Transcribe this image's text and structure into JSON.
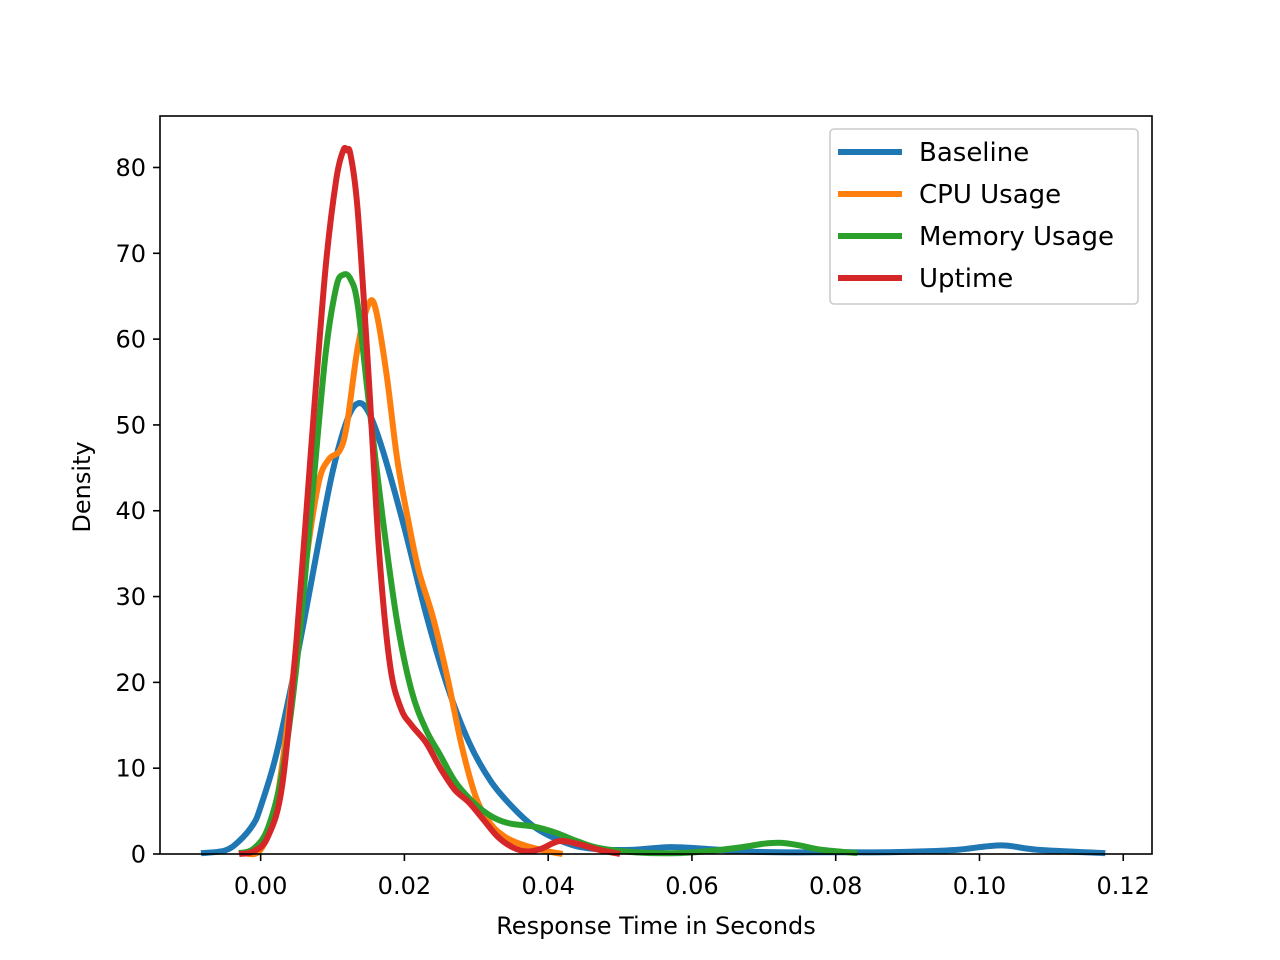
{
  "chart_data": {
    "type": "line",
    "title": "",
    "xlabel": "Response Time in Seconds",
    "ylabel": "Density",
    "xlim": [
      -0.014,
      0.124
    ],
    "ylim": [
      0,
      86
    ],
    "xticks": [
      0.0,
      0.02,
      0.04,
      0.06,
      0.08,
      0.1,
      0.12
    ],
    "xtick_labels": [
      "0.00",
      "0.02",
      "0.04",
      "0.06",
      "0.08",
      "0.10",
      "0.12"
    ],
    "yticks": [
      0,
      10,
      20,
      30,
      40,
      50,
      60,
      70,
      80
    ],
    "ytick_labels": [
      "0",
      "10",
      "20",
      "30",
      "40",
      "50",
      "60",
      "70",
      "80"
    ],
    "grid": false,
    "legend_position": "top-right",
    "series": [
      {
        "name": "Baseline",
        "color": "#1f77b4",
        "x": [
          -0.0083,
          -0.005,
          -0.003,
          -0.001,
          0.0,
          0.002,
          0.004,
          0.006,
          0.008,
          0.01,
          0.012,
          0.0135,
          0.015,
          0.017,
          0.02,
          0.023,
          0.026,
          0.029,
          0.032,
          0.035,
          0.038,
          0.041,
          0.044,
          0.048,
          0.052,
          0.057,
          0.062,
          0.067,
          0.072,
          0.077,
          0.082,
          0.087,
          0.092,
          0.097,
          0.103,
          0.108,
          0.1175
        ],
        "y": [
          0.1,
          0.4,
          1.5,
          3.5,
          5.5,
          11.0,
          18.5,
          27.0,
          36.0,
          44.5,
          50.5,
          52.5,
          51.5,
          47.0,
          38.0,
          28.0,
          19.5,
          13.0,
          8.5,
          5.5,
          3.2,
          1.8,
          0.9,
          0.5,
          0.5,
          0.8,
          0.6,
          0.3,
          0.2,
          0.2,
          0.2,
          0.2,
          0.3,
          0.5,
          1.0,
          0.5,
          0.1
        ]
      },
      {
        "name": "CPU Usage",
        "color": "#ff7f0e",
        "x": [
          -0.002,
          0.0,
          0.002,
          0.004,
          0.006,
          0.008,
          0.0095,
          0.011,
          0.012,
          0.0135,
          0.015,
          0.016,
          0.0175,
          0.019,
          0.0205,
          0.022,
          0.024,
          0.026,
          0.028,
          0.03,
          0.032,
          0.034,
          0.036,
          0.038,
          0.04,
          0.042
        ],
        "y": [
          0.0,
          0.5,
          5.0,
          17.0,
          32.0,
          43.0,
          46.0,
          47.0,
          50.0,
          59.0,
          64.0,
          63.5,
          56.0,
          46.0,
          39.0,
          33.0,
          27.5,
          20.5,
          12.5,
          6.5,
          3.5,
          2.0,
          1.2,
          0.7,
          0.3,
          0.0
        ]
      },
      {
        "name": "Memory Usage",
        "color": "#2ca02c",
        "x": [
          -0.003,
          -0.001,
          0.001,
          0.003,
          0.005,
          0.007,
          0.009,
          0.0105,
          0.0115,
          0.0125,
          0.0135,
          0.015,
          0.017,
          0.019,
          0.021,
          0.023,
          0.025,
          0.027,
          0.029,
          0.031,
          0.033,
          0.035,
          0.038,
          0.041,
          0.044,
          0.047,
          0.052,
          0.058,
          0.063,
          0.067,
          0.07,
          0.0725,
          0.075,
          0.078,
          0.083
        ],
        "y": [
          0.1,
          0.6,
          3.0,
          9.5,
          22.0,
          40.0,
          58.0,
          66.0,
          67.5,
          67.0,
          64.0,
          53.0,
          39.0,
          27.0,
          19.0,
          14.5,
          11.5,
          8.5,
          6.5,
          5.0,
          4.0,
          3.5,
          3.2,
          2.5,
          1.5,
          0.7,
          0.2,
          0.1,
          0.4,
          0.8,
          1.2,
          1.3,
          1.0,
          0.5,
          0.1
        ]
      },
      {
        "name": "Uptime",
        "color": "#d62728",
        "x": [
          -0.003,
          -0.001,
          0.001,
          0.003,
          0.005,
          0.007,
          0.009,
          0.0105,
          0.0115,
          0.012,
          0.0125,
          0.0135,
          0.015,
          0.0165,
          0.018,
          0.0195,
          0.021,
          0.023,
          0.025,
          0.027,
          0.029,
          0.031,
          0.033,
          0.035,
          0.037,
          0.039,
          0.0415,
          0.044,
          0.047,
          0.05
        ],
        "y": [
          0.0,
          0.3,
          2.0,
          8.0,
          25.0,
          47.0,
          68.0,
          78.5,
          82.0,
          82.0,
          81.5,
          75.0,
          56.0,
          35.0,
          22.0,
          17.0,
          15.0,
          13.0,
          10.0,
          7.5,
          6.0,
          4.0,
          2.0,
          0.8,
          0.3,
          0.6,
          1.5,
          1.2,
          0.5,
          0.0
        ]
      }
    ]
  }
}
